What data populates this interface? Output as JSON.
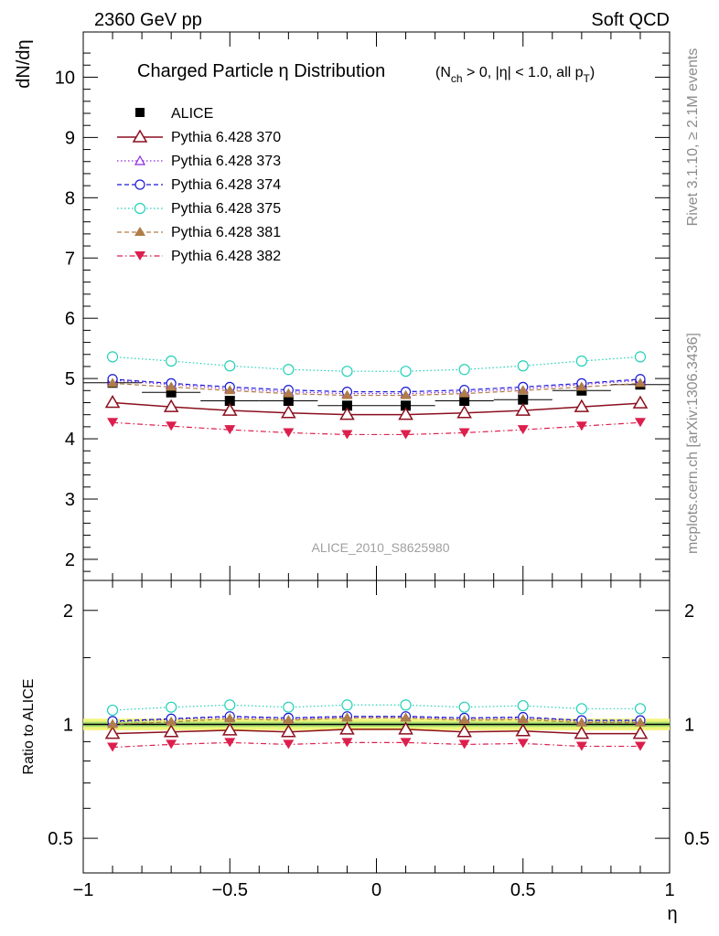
{
  "header": {
    "energy_label": "2360 GeV pp",
    "process_label": "Soft QCD"
  },
  "side_labels": {
    "rivet": "Rivet 3.1.10, ≥ 2.1M events",
    "mcplots": "mcplots.cern.ch [arXiv:1306.3436]"
  },
  "chart_data": [
    {
      "type": "line",
      "panel": "main",
      "title_main": "Charged Particle η Distribution",
      "title_sub": "(N",
      "title_sub_ch": "ch",
      "title_sub_rest": " > 0, |η| < 1.0, all p",
      "title_sub_T": "T",
      "title_sub_close": ")",
      "ylabel": "dN/dη",
      "watermark": "ALICE_2010_S8625980",
      "ylim": [
        1.65,
        10.75
      ],
      "xlim": [
        -1.0,
        1.0
      ],
      "y_ticks": [
        "2",
        "3",
        "4",
        "5",
        "6",
        "7",
        "8",
        "9",
        "10"
      ],
      "x": [
        -0.9,
        -0.7,
        -0.5,
        -0.3,
        -0.1,
        0.1,
        0.3,
        0.5,
        0.7,
        0.9
      ],
      "series": [
        {
          "name": "ALICE",
          "color": "#000000",
          "marker": "square",
          "dash": "none",
          "values": [
            4.93,
            4.77,
            4.63,
            4.63,
            4.55,
            4.55,
            4.63,
            4.65,
            4.8,
            4.9
          ]
        },
        {
          "name": "Pythia 6.428 370",
          "color": "#8b0f1e",
          "marker": "triangle-open",
          "dash": "solid",
          "values": [
            4.6,
            4.53,
            4.47,
            4.43,
            4.4,
            4.4,
            4.43,
            4.47,
            4.53,
            4.59
          ]
        },
        {
          "name": "Pythia 6.428 373",
          "color": "#8a2be2",
          "marker": "triangle-open-small",
          "dash": "dot",
          "values": [
            4.97,
            4.9,
            4.83,
            4.78,
            4.75,
            4.75,
            4.78,
            4.83,
            4.9,
            4.97
          ]
        },
        {
          "name": "Pythia 6.428 374",
          "color": "#1a1ad6",
          "marker": "circle-open",
          "dash": "dash",
          "values": [
            4.99,
            4.92,
            4.86,
            4.81,
            4.78,
            4.78,
            4.81,
            4.86,
            4.92,
            4.99
          ]
        },
        {
          "name": "Pythia 6.428 375",
          "color": "#1fd1b8",
          "marker": "circle-open-large",
          "dash": "dot",
          "values": [
            5.36,
            5.29,
            5.21,
            5.15,
            5.12,
            5.12,
            5.15,
            5.21,
            5.29,
            5.36
          ]
        },
        {
          "name": "Pythia 6.428 381",
          "color": "#b07d48",
          "marker": "triangle-filled",
          "dash": "dash",
          "values": [
            4.92,
            4.86,
            4.8,
            4.75,
            4.72,
            4.72,
            4.75,
            4.8,
            4.86,
            4.92
          ]
        },
        {
          "name": "Pythia 6.428 382",
          "color": "#dc1f4d",
          "marker": "triangle-down-filled",
          "dash": "dashdot",
          "values": [
            4.27,
            4.21,
            4.15,
            4.1,
            4.07,
            4.07,
            4.1,
            4.15,
            4.21,
            4.27
          ]
        }
      ]
    },
    {
      "type": "line",
      "panel": "ratio",
      "ylabel": "Ratio to ALICE",
      "xlabel": "η",
      "yscale": "log",
      "ylim": [
        0.405,
        2.4
      ],
      "xlim": [
        -1.0,
        1.0
      ],
      "y_ticks": [
        "0.5",
        "1",
        "2"
      ],
      "x_ticks": [
        "−1",
        "−0.5",
        "0",
        "0.5",
        "1"
      ],
      "band": {
        "color_outer": "#f2f57a",
        "color_inner": "#a8e070",
        "halfwidth": 0.035
      },
      "x": [
        -0.9,
        -0.7,
        -0.5,
        -0.3,
        -0.1,
        0.1,
        0.3,
        0.5,
        0.7,
        0.9
      ],
      "series": [
        {
          "name": "Pythia 6.428 370",
          "values": [
            0.945,
            0.955,
            0.965,
            0.955,
            0.97,
            0.97,
            0.955,
            0.96,
            0.945,
            0.945
          ]
        },
        {
          "name": "Pythia 6.428 373",
          "values": [
            1.015,
            1.03,
            1.045,
            1.035,
            1.045,
            1.045,
            1.035,
            1.04,
            1.02,
            1.02
          ]
        },
        {
          "name": "Pythia 6.428 374",
          "values": [
            1.02,
            1.035,
            1.05,
            1.04,
            1.05,
            1.05,
            1.04,
            1.045,
            1.025,
            1.025
          ]
        },
        {
          "name": "Pythia 6.428 375",
          "values": [
            1.09,
            1.11,
            1.125,
            1.11,
            1.125,
            1.125,
            1.11,
            1.12,
            1.1,
            1.1
          ]
        },
        {
          "name": "Pythia 6.428 381",
          "values": [
            1.0,
            1.015,
            1.035,
            1.025,
            1.04,
            1.04,
            1.025,
            1.03,
            1.01,
            1.01
          ]
        },
        {
          "name": "Pythia 6.428 382",
          "values": [
            0.87,
            0.885,
            0.895,
            0.885,
            0.895,
            0.895,
            0.885,
            0.89,
            0.875,
            0.875
          ]
        }
      ]
    }
  ]
}
